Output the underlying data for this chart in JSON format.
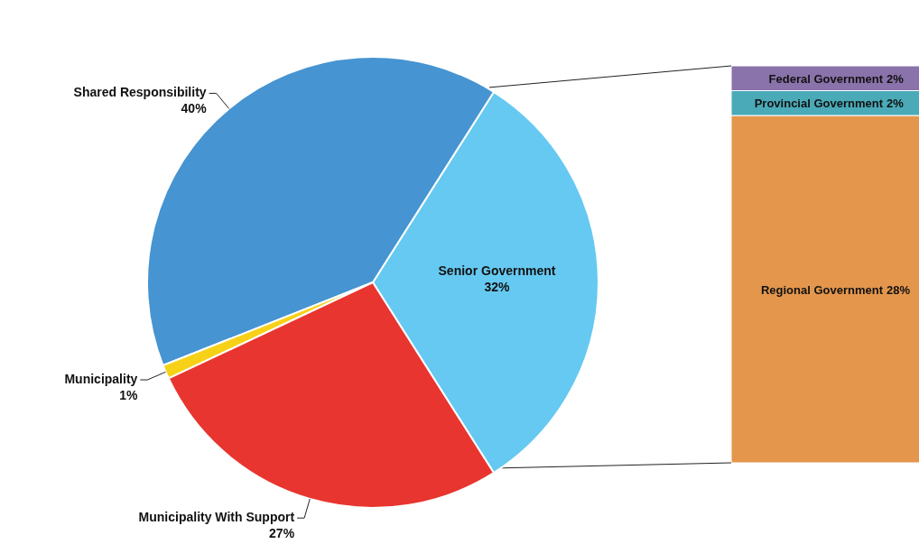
{
  "chart_data": [
    {
      "type": "pie",
      "categories": [
        "Senior Government",
        "Shared Responsibility",
        "Municipality",
        "Municipality With Support"
      ],
      "values": [
        32,
        40,
        1,
        27
      ],
      "colors": [
        "#66c9f1",
        "#4694d1",
        "#f7d117",
        "#e8352f"
      ],
      "value_labels": [
        "32%",
        "40%",
        "1%",
        "27%"
      ]
    },
    {
      "type": "bar",
      "stacked": true,
      "categories": [
        null
      ],
      "series": [
        {
          "name": "Regional Government",
          "color": "#e3964c",
          "values": [
            28
          ],
          "value_labels": [
            "28%"
          ]
        },
        {
          "name": "Provincial Government",
          "color": "#4aaab8",
          "values": [
            2
          ],
          "value_labels": [
            "2%"
          ]
        },
        {
          "name": "Federal Government",
          "color": "#8a72aa",
          "values": [
            2
          ],
          "value_labels": [
            "2%"
          ]
        }
      ]
    }
  ]
}
